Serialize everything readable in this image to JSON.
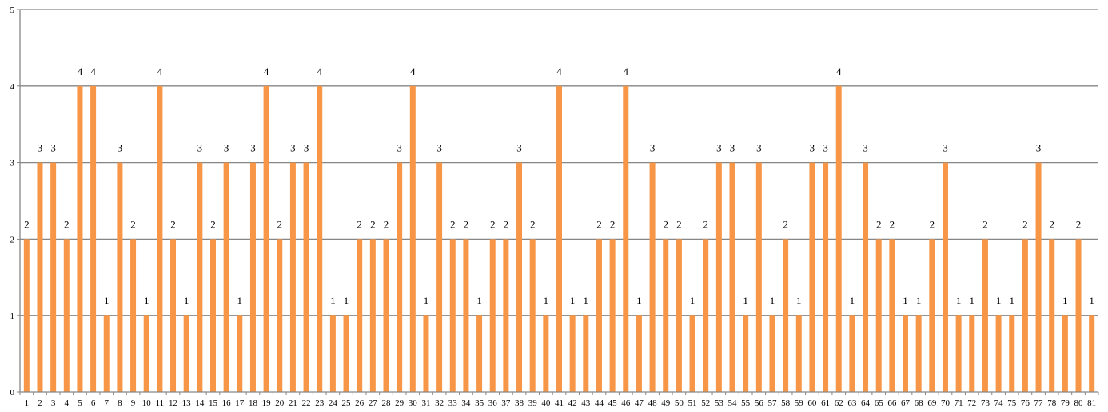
{
  "chart_data": {
    "type": "bar",
    "title": "",
    "xlabel": "",
    "ylabel": "",
    "categories": [
      "1",
      "2",
      "3",
      "4",
      "5",
      "6",
      "7",
      "8",
      "9",
      "10",
      "11",
      "12",
      "13",
      "14",
      "15",
      "16",
      "17",
      "18",
      "19",
      "20",
      "21",
      "22",
      "23",
      "24",
      "25",
      "26",
      "27",
      "28",
      "29",
      "30",
      "31",
      "32",
      "33",
      "34",
      "35",
      "36",
      "37",
      "38",
      "39",
      "40",
      "41",
      "42",
      "43",
      "44",
      "45",
      "46",
      "47",
      "48",
      "49",
      "50",
      "51",
      "52",
      "53",
      "54",
      "55",
      "56",
      "57",
      "58",
      "59",
      "60",
      "61",
      "62",
      "63",
      "64",
      "65",
      "66",
      "67",
      "68",
      "69",
      "70",
      "71",
      "72",
      "73",
      "74",
      "75",
      "76",
      "77",
      "78",
      "79",
      "80",
      "81"
    ],
    "values": [
      2,
      3,
      3,
      2,
      4,
      4,
      1,
      3,
      2,
      1,
      4,
      2,
      1,
      3,
      2,
      3,
      1,
      3,
      4,
      2,
      3,
      3,
      4,
      1,
      1,
      2,
      2,
      2,
      3,
      4,
      1,
      3,
      2,
      2,
      1,
      2,
      2,
      3,
      2,
      1,
      4,
      1,
      1,
      2,
      2,
      4,
      1,
      3,
      2,
      2,
      1,
      2,
      3,
      3,
      1,
      3,
      1,
      2,
      1,
      3,
      3,
      4,
      1,
      3,
      2,
      2,
      1,
      1,
      2,
      3,
      1,
      1,
      2,
      1,
      1,
      2,
      3,
      2,
      1,
      2,
      1
    ],
    "ylim": [
      0,
      5
    ],
    "yticks": [
      0,
      1,
      2,
      3,
      4,
      5
    ],
    "grid": true,
    "legend": "none",
    "bar_color": "#F79646",
    "grid_color": "#868686",
    "data_labels": true
  }
}
